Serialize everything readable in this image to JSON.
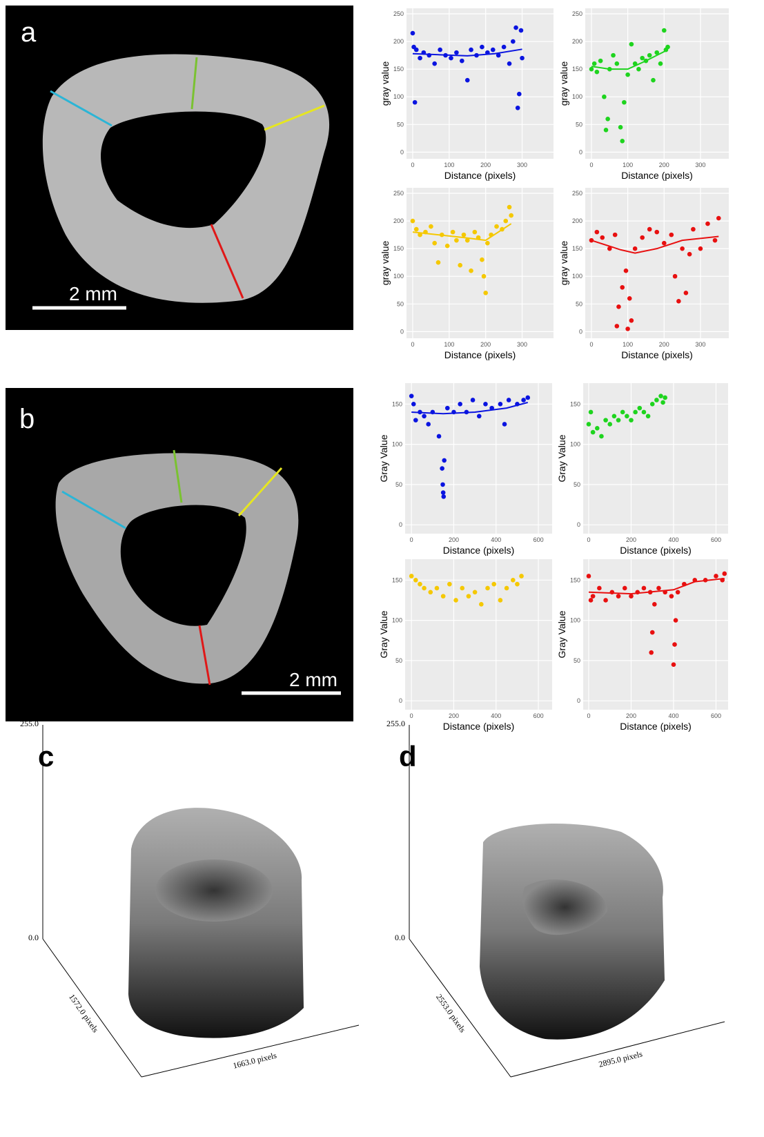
{
  "chart_data": [
    {
      "type": "scatter",
      "x_label": "Distance (pixels)",
      "y_label": "gray value",
      "color": "#0a14e0",
      "x": [
        0,
        3,
        6,
        10,
        20,
        30,
        45,
        60,
        75,
        90,
        105,
        120,
        135,
        150,
        160,
        175,
        190,
        205,
        220,
        235,
        250,
        265,
        275,
        283,
        288,
        292,
        297,
        300
      ],
      "values": [
        215,
        190,
        90,
        185,
        170,
        180,
        175,
        160,
        185,
        175,
        170,
        180,
        165,
        130,
        185,
        175,
        190,
        180,
        185,
        175,
        190,
        160,
        200,
        225,
        80,
        105,
        220,
        170
      ],
      "fit_x": [
        0,
        75,
        150,
        225,
        300
      ],
      "fit_values": [
        178,
        176,
        174,
        178,
        186
      ],
      "xlim": [
        -17,
        386
      ],
      "ylim": [
        -12,
        260
      ],
      "xticks": [
        0,
        100,
        200,
        300
      ],
      "yticks": [
        0,
        50,
        100,
        150,
        200,
        250
      ]
    },
    {
      "type": "scatter",
      "x_label": "Distance (pixels)",
      "y_label": "gray value",
      "color": "#1ed41e",
      "x": [
        0,
        8,
        15,
        25,
        35,
        40,
        45,
        50,
        60,
        70,
        80,
        85,
        90,
        100,
        110,
        120,
        130,
        140,
        150,
        160,
        170,
        180,
        190,
        200,
        205,
        210
      ],
      "values": [
        150,
        160,
        145,
        165,
        100,
        40,
        60,
        150,
        175,
        160,
        45,
        20,
        90,
        140,
        195,
        160,
        150,
        170,
        165,
        175,
        130,
        180,
        160,
        220,
        185,
        190
      ],
      "fit_x": [
        0,
        50,
        100,
        150,
        210
      ],
      "fit_values": [
        155,
        150,
        150,
        165,
        185
      ],
      "xlim": [
        -17,
        378
      ],
      "ylim": [
        -12,
        260
      ],
      "xticks": [
        0,
        100,
        200,
        300
      ],
      "yticks": [
        0,
        50,
        100,
        150,
        200,
        250
      ]
    },
    {
      "type": "scatter",
      "x_label": "Distance (pixels)",
      "y_label": "gray value",
      "color": "#f5c800",
      "x": [
        0,
        10,
        20,
        35,
        50,
        60,
        70,
        80,
        95,
        110,
        120,
        130,
        140,
        150,
        160,
        170,
        180,
        190,
        195,
        200,
        205,
        215,
        230,
        245,
        255,
        265,
        270
      ],
      "values": [
        200,
        185,
        175,
        180,
        190,
        160,
        125,
        175,
        155,
        180,
        165,
        120,
        175,
        165,
        110,
        180,
        170,
        130,
        100,
        70,
        160,
        175,
        190,
        185,
        200,
        225,
        210
      ],
      "fit_x": [
        0,
        70,
        140,
        200,
        270
      ],
      "fit_values": [
        180,
        175,
        170,
        165,
        195
      ],
      "xlim": [
        -17,
        386
      ],
      "ylim": [
        -12,
        260
      ],
      "xticks": [
        0,
        100,
        200,
        300
      ],
      "yticks": [
        0,
        50,
        100,
        150,
        200,
        250
      ]
    },
    {
      "type": "scatter",
      "x_label": "Distance (pixels)",
      "y_label": "gray value",
      "color": "#e81010",
      "x": [
        0,
        15,
        30,
        50,
        65,
        70,
        75,
        85,
        95,
        100,
        105,
        110,
        120,
        140,
        160,
        180,
        200,
        220,
        230,
        240,
        250,
        260,
        270,
        280,
        300,
        320,
        340,
        350
      ],
      "values": [
        165,
        180,
        170,
        150,
        175,
        10,
        45,
        80,
        110,
        5,
        60,
        20,
        150,
        170,
        185,
        180,
        160,
        175,
        100,
        55,
        150,
        70,
        140,
        185,
        150,
        195,
        165,
        205
      ],
      "fit_x": [
        0,
        80,
        120,
        180,
        250,
        350
      ],
      "fit_values": [
        165,
        148,
        142,
        150,
        165,
        172
      ],
      "xlim": [
        -17,
        378
      ],
      "ylim": [
        -12,
        260
      ],
      "xticks": [
        0,
        100,
        200,
        300
      ],
      "yticks": [
        0,
        50,
        100,
        150,
        200,
        250
      ]
    },
    {
      "type": "scatter",
      "x_label": "Distance (pixels)",
      "y_label": "Gray Value",
      "color": "#0a14e0",
      "x": [
        0,
        10,
        20,
        40,
        60,
        80,
        100,
        130,
        145,
        148,
        150,
        152,
        155,
        170,
        200,
        230,
        260,
        290,
        320,
        350,
        380,
        420,
        440,
        460,
        500,
        530,
        550
      ],
      "values": [
        160,
        150,
        130,
        140,
        135,
        125,
        140,
        110,
        70,
        50,
        40,
        35,
        80,
        145,
        140,
        150,
        140,
        155,
        135,
        150,
        145,
        150,
        125,
        155,
        150,
        155,
        158
      ],
      "fit_x": [
        0,
        150,
        300,
        450,
        550
      ],
      "fit_values": [
        140,
        138,
        140,
        145,
        152
      ],
      "xlim": [
        -30,
        665
      ],
      "ylim": [
        -11,
        176
      ],
      "xticks": [
        0,
        200,
        400,
        600
      ],
      "yticks": [
        0,
        50,
        100,
        150
      ]
    },
    {
      "type": "scatter",
      "x_label": "Distance (pixels)",
      "y_label": "Gray Value",
      "color": "#1ed41e",
      "x": [
        0,
        10,
        20,
        40,
        60,
        80,
        100,
        120,
        140,
        160,
        180,
        200,
        220,
        240,
        260,
        280,
        300,
        320,
        340,
        350,
        360
      ],
      "values": [
        125,
        140,
        115,
        120,
        110,
        130,
        125,
        135,
        130,
        140,
        135,
        130,
        140,
        145,
        140,
        135,
        150,
        155,
        160,
        152,
        158
      ],
      "xlim": [
        -26,
        657
      ],
      "ylim": [
        -11,
        176
      ],
      "xticks": [
        0,
        200,
        400,
        600
      ],
      "yticks": [
        0,
        50,
        100,
        150
      ]
    },
    {
      "type": "scatter",
      "x_label": "Distance (pixels)",
      "y_label": "Gray Value",
      "color": "#f5c800",
      "x": [
        0,
        20,
        40,
        60,
        90,
        120,
        150,
        180,
        210,
        240,
        270,
        300,
        330,
        360,
        390,
        420,
        450,
        480,
        500,
        520
      ],
      "values": [
        155,
        150,
        145,
        140,
        135,
        140,
        130,
        145,
        125,
        140,
        130,
        135,
        120,
        140,
        145,
        125,
        140,
        150,
        145,
        155
      ],
      "xlim": [
        -30,
        665
      ],
      "ylim": [
        -11,
        176
      ],
      "xticks": [
        0,
        200,
        400,
        600
      ],
      "yticks": [
        0,
        50,
        100,
        150
      ]
    },
    {
      "type": "scatter",
      "x_label": "Distance (pixels)",
      "y_label": "Gray Value",
      "color": "#e81010",
      "x": [
        0,
        10,
        20,
        50,
        80,
        110,
        140,
        170,
        200,
        230,
        260,
        290,
        295,
        300,
        310,
        330,
        360,
        390,
        400,
        405,
        410,
        420,
        450,
        500,
        550,
        600,
        630,
        640
      ],
      "values": [
        155,
        125,
        130,
        140,
        125,
        135,
        130,
        140,
        130,
        135,
        140,
        135,
        60,
        85,
        120,
        140,
        135,
        130,
        45,
        70,
        100,
        135,
        145,
        150,
        150,
        155,
        150,
        158
      ],
      "fit_x": [
        0,
        200,
        400,
        500,
        640
      ],
      "fit_values": [
        135,
        133,
        138,
        148,
        152
      ],
      "xlim": [
        -26,
        657
      ],
      "ylim": [
        -11,
        176
      ],
      "xticks": [
        0,
        200,
        400,
        600
      ],
      "yticks": [
        0,
        50,
        100,
        150
      ]
    }
  ],
  "panels": [
    {
      "label": "a",
      "scale_bar": "2 mm"
    },
    {
      "label": "b",
      "scale_bar": "2 mm"
    },
    {
      "label": "c",
      "z_max": "255.0",
      "z_min": "0.0",
      "depth_label": "1572.0 pixels",
      "width_label": "1663.0 pixels"
    },
    {
      "label": "d",
      "z_max": "255.0",
      "z_min": "0.0",
      "depth_label": "2553.0 pixels",
      "width_label": "2895.0 pixels"
    }
  ]
}
